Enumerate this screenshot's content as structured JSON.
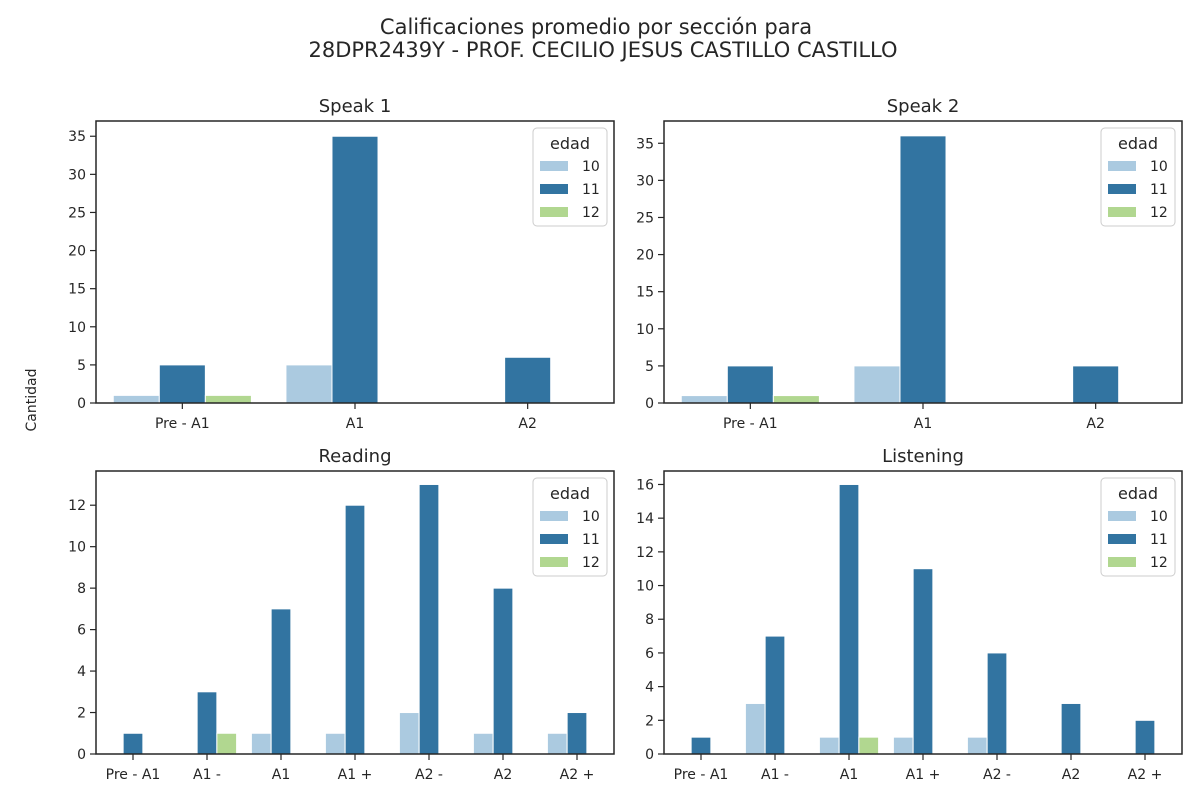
{
  "figure": {
    "title_line1": "Calificaciones promedio por sección para",
    "title_line2": "28DPR2439Y - PROF. CECILIO JESUS CASTILLO CASTILLO",
    "ylabel": "Cantidad"
  },
  "legend": {
    "title": "edad",
    "entries": [
      {
        "label": "10",
        "color": "#abcae0"
      },
      {
        "label": "11",
        "color": "#3274a1"
      },
      {
        "label": "12",
        "color": "#b1d790"
      }
    ]
  },
  "chart_data": [
    {
      "type": "bar",
      "title": "Speak 1",
      "categories": [
        "Pre - A1",
        "A1",
        "A2"
      ],
      "ylim": [
        0,
        37
      ],
      "yticks": [
        0,
        5,
        10,
        15,
        20,
        25,
        30,
        35
      ],
      "series": [
        {
          "name": "10",
          "color": "#abcae0",
          "values": [
            1,
            5,
            0
          ]
        },
        {
          "name": "11",
          "color": "#3274a1",
          "values": [
            5,
            35,
            6
          ]
        },
        {
          "name": "12",
          "color": "#b1d790",
          "values": [
            1,
            0,
            0
          ]
        }
      ],
      "legend_position": "top-right"
    },
    {
      "type": "bar",
      "title": "Speak 2",
      "categories": [
        "Pre - A1",
        "A1",
        "A2"
      ],
      "ylim": [
        0,
        38
      ],
      "yticks": [
        0,
        5,
        10,
        15,
        20,
        25,
        30,
        35
      ],
      "series": [
        {
          "name": "10",
          "color": "#abcae0",
          "values": [
            1,
            5,
            0
          ]
        },
        {
          "name": "11",
          "color": "#3274a1",
          "values": [
            5,
            36,
            5
          ]
        },
        {
          "name": "12",
          "color": "#b1d790",
          "values": [
            1,
            0,
            0
          ]
        }
      ],
      "legend_position": "top-right"
    },
    {
      "type": "bar",
      "title": "Reading",
      "categories": [
        "Pre - A1",
        "A1 -",
        "A1",
        "A1 +",
        "A2 -",
        "A2",
        "A2 +"
      ],
      "ylim": [
        0,
        13.65
      ],
      "yticks": [
        0,
        2,
        4,
        6,
        8,
        10,
        12
      ],
      "series": [
        {
          "name": "10",
          "color": "#abcae0",
          "values": [
            0,
            0,
            1,
            1,
            2,
            1,
            1
          ]
        },
        {
          "name": "11",
          "color": "#3274a1",
          "values": [
            1,
            3,
            7,
            12,
            13,
            8,
            2
          ]
        },
        {
          "name": "12",
          "color": "#b1d790",
          "values": [
            0,
            1,
            0,
            0,
            0,
            0,
            0
          ]
        }
      ],
      "legend_position": "top-right"
    },
    {
      "type": "bar",
      "title": "Listening",
      "categories": [
        "Pre - A1",
        "A1 -",
        "A1",
        "A1 +",
        "A2 -",
        "A2",
        "A2 +"
      ],
      "ylim": [
        0,
        16.8
      ],
      "yticks": [
        0,
        2,
        4,
        6,
        8,
        10,
        12,
        14,
        16
      ],
      "series": [
        {
          "name": "10",
          "color": "#abcae0",
          "values": [
            0,
            3,
            1,
            1,
            1,
            0,
            0
          ]
        },
        {
          "name": "11",
          "color": "#3274a1",
          "values": [
            1,
            7,
            16,
            11,
            6,
            3,
            2
          ]
        },
        {
          "name": "12",
          "color": "#b1d790",
          "values": [
            0,
            0,
            1,
            0,
            0,
            0,
            0
          ]
        }
      ],
      "legend_position": "top-right"
    }
  ]
}
